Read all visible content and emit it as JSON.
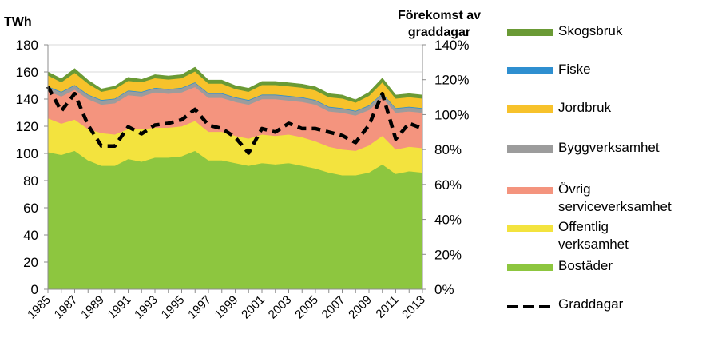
{
  "chart_data": {
    "type": "area",
    "left_axis_title": "TWh",
    "right_axis_title_lines": [
      "Förekomst av",
      "graddagar"
    ],
    "x": [
      1985,
      1986,
      1987,
      1988,
      1989,
      1990,
      1991,
      1992,
      1993,
      1994,
      1995,
      1996,
      1997,
      1998,
      1999,
      2000,
      2001,
      2002,
      2003,
      2004,
      2005,
      2006,
      2007,
      2008,
      2009,
      2010,
      2011,
      2012,
      2013
    ],
    "x_tick_labels": [
      "1985",
      "1987",
      "1989",
      "1991",
      "1993",
      "1995",
      "1997",
      "1999",
      "2001",
      "2003",
      "2005",
      "2007",
      "2009",
      "2011",
      "2013"
    ],
    "ylim": [
      0,
      180
    ],
    "y_ticks": [
      "0",
      "20",
      "40",
      "60",
      "80",
      "100",
      "120",
      "140",
      "160",
      "180"
    ],
    "y2lim": [
      0,
      140
    ],
    "y2_ticks": [
      "0%",
      "20%",
      "40%",
      "60%",
      "80%",
      "100%",
      "120%",
      "140%"
    ],
    "series": [
      {
        "name": "Bostäder",
        "color": "#8dc63f",
        "values": [
          101,
          99,
          102,
          95,
          91,
          91,
          96,
          94,
          97,
          97,
          98,
          102,
          95,
          95,
          93,
          91,
          93,
          92,
          93,
          91,
          89,
          86,
          84,
          84,
          86,
          92,
          85,
          87,
          86
        ]
      },
      {
        "name": "Offentlig verksamhet",
        "color": "#f3e33e",
        "values": [
          25,
          23,
          23,
          23,
          24,
          23,
          22,
          24,
          22,
          22,
          22,
          22,
          21,
          21,
          20,
          20,
          21,
          21,
          21,
          21,
          20,
          19,
          19,
          18,
          20,
          21,
          18,
          18,
          18
        ]
      },
      {
        "name": "Övrig serviceverksamhet",
        "color": "#f4947e",
        "values": [
          20,
          20,
          22,
          22,
          21,
          23,
          25,
          24,
          26,
          25,
          25,
          25,
          25,
          25,
          25,
          25,
          26,
          27,
          25,
          26,
          27,
          26,
          27,
          26,
          26,
          28,
          27,
          26,
          26
        ]
      },
      {
        "name": "Byggverksamhet",
        "color": "#9c9c9c",
        "values": [
          3,
          3,
          3,
          3,
          3,
          3,
          3,
          3,
          3,
          3,
          3,
          3,
          3,
          3,
          3,
          3,
          3,
          3,
          3,
          3,
          3,
          3,
          3,
          3,
          3,
          3,
          3,
          3,
          3
        ]
      },
      {
        "name": "Fiske",
        "color": "#2e8fd0",
        "values": [
          0.5,
          0.5,
          0.5,
          0.5,
          0.5,
          0.5,
          0.5,
          0.5,
          0.5,
          0.5,
          0.5,
          0.5,
          0.5,
          0.5,
          0.5,
          0.5,
          0.5,
          0.5,
          0.5,
          0.5,
          0.5,
          0.5,
          0.5,
          0.5,
          0.5,
          0.5,
          0.5,
          0.5,
          0.5
        ]
      },
      {
        "name": "Jordbruk",
        "color": "#f7c22b",
        "values": [
          8,
          7,
          9,
          8,
          6,
          7,
          7,
          7,
          7,
          7,
          7,
          8,
          7,
          7,
          6,
          6,
          7,
          7,
          7,
          7,
          7,
          7,
          7,
          6,
          7,
          8,
          7,
          7,
          7
        ]
      },
      {
        "name": "Skogsbruk",
        "color": "#6a9a35",
        "values": [
          2.5,
          2.5,
          3,
          2.5,
          2,
          2,
          2.5,
          2,
          2.5,
          2.5,
          2.5,
          3,
          2.5,
          2.5,
          2.5,
          2.5,
          2.5,
          2.5,
          2.5,
          2.5,
          2.5,
          2.5,
          2.5,
          2,
          2.5,
          3,
          2.5,
          2.5,
          2.5
        ]
      }
    ],
    "line_series": {
      "name": "Graddagar",
      "axis": "right",
      "color": "#000000",
      "values": [
        116,
        102,
        112,
        94,
        82,
        82,
        93,
        89,
        94,
        95,
        97,
        103,
        94,
        92,
        87,
        78,
        92,
        90,
        95,
        92,
        92,
        90,
        88,
        84,
        94,
        112,
        86,
        95,
        92
      ]
    },
    "grid": true,
    "legend_position": "right"
  }
}
